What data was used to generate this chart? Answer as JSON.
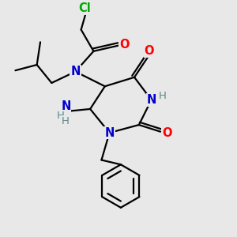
{
  "bg_color": "#e8e8e8",
  "bond_color": "#000000",
  "bond_width": 1.6,
  "atom_colors": {
    "C": "#000000",
    "N": "#0000cc",
    "O": "#ff0000",
    "Cl": "#00aa00",
    "H": "#5a8a8a"
  },
  "font_size": 10.5,
  "title": ""
}
